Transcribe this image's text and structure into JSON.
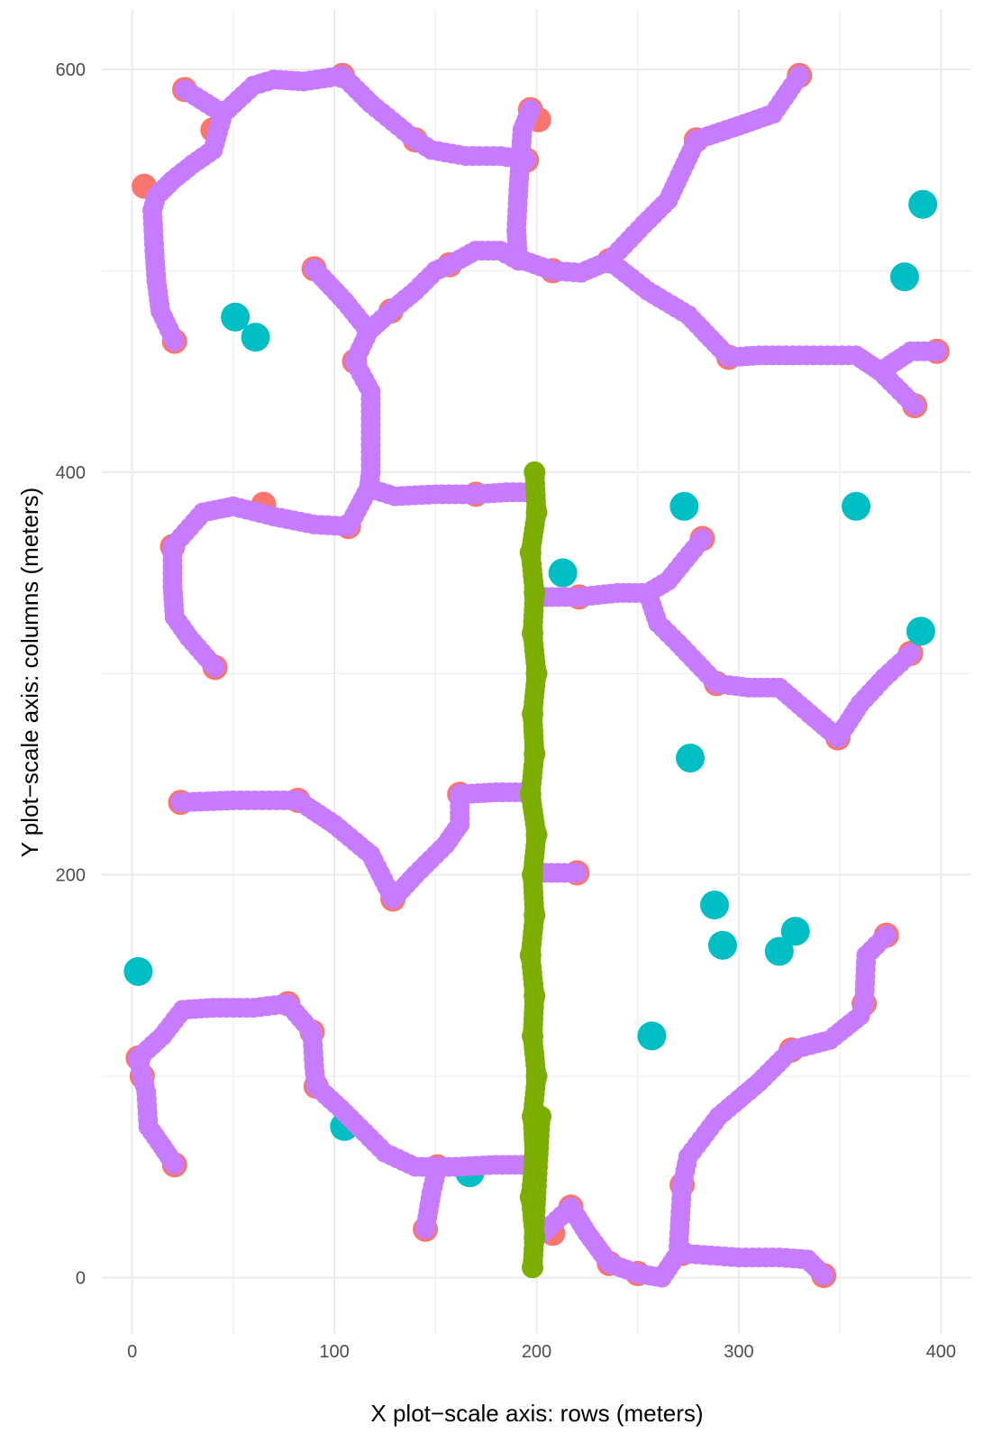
{
  "chart_data": {
    "type": "scatter",
    "xlabel": "X plot−scale axis: rows (meters)",
    "ylabel": "Y plot−scale axis: columns (meters)",
    "xlim": [
      -15,
      415
    ],
    "ylim": [
      -28,
      630
    ],
    "x_ticks": [
      0,
      100,
      200,
      300,
      400
    ],
    "y_ticks": [
      0,
      200,
      400,
      600
    ],
    "grid": true,
    "legend": "none",
    "colors": {
      "endpoints": "#F8766D",
      "isolated": "#00BFC4",
      "stem": "#7CAE00",
      "branches": "#C77CFF",
      "grid": "#ebebeb"
    },
    "series": [
      {
        "color": "#F8766D",
        "points": [
          [
            26,
            590
          ],
          [
            104,
            597
          ],
          [
            197,
            580
          ],
          [
            201,
            575
          ],
          [
            40,
            570
          ],
          [
            140,
            565
          ],
          [
            279,
            565
          ],
          [
            195,
            555
          ],
          [
            330,
            597
          ],
          [
            6,
            542
          ],
          [
            157,
            503
          ],
          [
            236,
            505
          ],
          [
            90,
            501
          ],
          [
            208,
            500
          ],
          [
            128,
            480
          ],
          [
            21,
            465
          ],
          [
            110,
            455
          ],
          [
            295,
            457
          ],
          [
            398,
            460
          ],
          [
            387,
            433
          ],
          [
            65,
            384
          ],
          [
            170,
            389
          ],
          [
            107,
            373
          ],
          [
            20,
            363
          ],
          [
            282,
            367
          ],
          [
            221,
            338
          ],
          [
            41,
            303
          ],
          [
            289,
            295
          ],
          [
            385,
            310
          ],
          [
            349,
            268
          ],
          [
            24,
            236
          ],
          [
            82,
            237
          ],
          [
            162,
            240
          ],
          [
            129,
            188
          ],
          [
            220,
            201
          ],
          [
            77,
            136
          ],
          [
            89,
            122
          ],
          [
            3,
            109
          ],
          [
            5,
            100
          ],
          [
            91,
            95
          ],
          [
            21,
            56
          ],
          [
            151,
            55
          ],
          [
            145,
            24
          ],
          [
            217,
            35
          ],
          [
            208,
            22
          ],
          [
            236,
            7
          ],
          [
            250,
            2
          ],
          [
            272,
            46
          ],
          [
            272,
            12
          ],
          [
            326,
            113
          ],
          [
            342,
            1
          ],
          [
            362,
            136
          ],
          [
            373,
            170
          ]
        ]
      },
      {
        "color": "#00BFC4",
        "points": [
          [
            51,
            477
          ],
          [
            61,
            467
          ],
          [
            391,
            533
          ],
          [
            382,
            497
          ],
          [
            273,
            383
          ],
          [
            358,
            383
          ],
          [
            213,
            350
          ],
          [
            390,
            321
          ],
          [
            276,
            258
          ],
          [
            288,
            185
          ],
          [
            292,
            165
          ],
          [
            320,
            162
          ],
          [
            328,
            172
          ],
          [
            3,
            152
          ],
          [
            257,
            120
          ],
          [
            105,
            75
          ],
          [
            167,
            52
          ]
        ]
      },
      {
        "color": "#7CAE00",
        "points": [
          [
            199,
            400
          ],
          [
            200,
            380
          ],
          [
            197,
            360
          ],
          [
            199,
            340
          ],
          [
            198,
            320
          ],
          [
            200,
            300
          ],
          [
            198,
            280
          ],
          [
            199,
            260
          ],
          [
            197,
            240
          ],
          [
            200,
            220
          ],
          [
            198,
            200
          ],
          [
            199,
            180
          ],
          [
            197,
            160
          ],
          [
            199,
            140
          ],
          [
            198,
            120
          ],
          [
            200,
            100
          ],
          [
            198,
            80
          ],
          [
            199,
            60
          ],
          [
            197,
            40
          ],
          [
            199,
            20
          ],
          [
            198,
            5
          ],
          [
            202,
            80
          ]
        ]
      }
    ],
    "paths": [
      {
        "color": "#C77CFF",
        "points": [
          [
            21,
            465
          ],
          [
            14,
            480
          ],
          [
            12,
            495
          ],
          [
            11,
            510
          ],
          [
            10,
            530
          ],
          [
            12,
            537
          ],
          [
            20,
            545
          ],
          [
            30,
            553
          ],
          [
            40,
            560
          ],
          [
            45,
            578
          ],
          [
            60,
            592
          ],
          [
            70,
            595
          ],
          [
            85,
            594
          ],
          [
            104,
            597
          ],
          [
            118,
            583
          ],
          [
            140,
            565
          ],
          [
            148,
            560
          ],
          [
            165,
            557
          ],
          [
            182,
            557
          ],
          [
            195,
            555
          ]
        ]
      },
      {
        "color": "#C77CFF",
        "points": [
          [
            26,
            590
          ],
          [
            45,
            578
          ]
        ]
      },
      {
        "color": "#C77CFF",
        "points": [
          [
            197,
            580
          ],
          [
            193,
            570
          ],
          [
            192,
            555
          ],
          [
            191,
            540
          ],
          [
            190,
            520
          ],
          [
            191,
            505
          ],
          [
            182,
            510
          ],
          [
            170,
            510
          ],
          [
            157,
            503
          ],
          [
            150,
            500
          ],
          [
            140,
            490
          ],
          [
            128,
            480
          ],
          [
            117,
            470
          ],
          [
            110,
            455
          ]
        ]
      },
      {
        "color": "#C77CFF",
        "points": [
          [
            90,
            501
          ],
          [
            105,
            485
          ],
          [
            117,
            470
          ]
        ]
      },
      {
        "color": "#C77CFF",
        "points": [
          [
            110,
            455
          ],
          [
            118,
            440
          ],
          [
            118,
            420
          ],
          [
            118,
            400
          ],
          [
            117,
            392
          ],
          [
            130,
            388
          ],
          [
            150,
            389
          ],
          [
            170,
            389
          ],
          [
            185,
            390
          ],
          [
            195,
            390
          ],
          [
            198,
            390
          ]
        ]
      },
      {
        "color": "#C77CFF",
        "points": [
          [
            194,
            505
          ],
          [
            208,
            500
          ],
          [
            222,
            499
          ],
          [
            236,
            505
          ],
          [
            253,
            523
          ],
          [
            265,
            535
          ],
          [
            279,
            565
          ],
          [
            300,
            572
          ],
          [
            317,
            578
          ],
          [
            330,
            597
          ]
        ]
      },
      {
        "color": "#C77CFF",
        "points": [
          [
            236,
            505
          ],
          [
            255,
            490
          ],
          [
            275,
            478
          ],
          [
            295,
            457
          ],
          [
            310,
            458
          ],
          [
            330,
            458
          ],
          [
            358,
            458
          ],
          [
            370,
            450
          ],
          [
            387,
            433
          ]
        ]
      },
      {
        "color": "#C77CFF",
        "points": [
          [
            370,
            450
          ],
          [
            385,
            460
          ],
          [
            398,
            460
          ]
        ]
      },
      {
        "color": "#C77CFF",
        "points": [
          [
            117,
            392
          ],
          [
            107,
            373
          ],
          [
            90,
            374
          ],
          [
            70,
            378
          ],
          [
            50,
            383
          ],
          [
            35,
            380
          ],
          [
            20,
            363
          ],
          [
            20,
            343
          ],
          [
            21,
            328
          ],
          [
            28,
            318
          ],
          [
            41,
            303
          ]
        ]
      },
      {
        "color": "#C77CFF",
        "points": [
          [
            201,
            338
          ],
          [
            221,
            338
          ],
          [
            240,
            340
          ],
          [
            255,
            340
          ],
          [
            265,
            346
          ],
          [
            282,
            367
          ]
        ]
      },
      {
        "color": "#C77CFF",
        "points": [
          [
            255,
            340
          ],
          [
            260,
            325
          ],
          [
            270,
            315
          ],
          [
            289,
            295
          ],
          [
            305,
            293
          ],
          [
            320,
            293
          ],
          [
            335,
            280
          ],
          [
            349,
            268
          ],
          [
            360,
            285
          ],
          [
            372,
            298
          ],
          [
            385,
            310
          ]
        ]
      },
      {
        "color": "#C77CFF",
        "points": [
          [
            24,
            236
          ],
          [
            50,
            237
          ],
          [
            82,
            237
          ],
          [
            100,
            225
          ],
          [
            118,
            210
          ],
          [
            129,
            188
          ],
          [
            140,
            200
          ],
          [
            155,
            215
          ],
          [
            162,
            225
          ],
          [
            162,
            240
          ],
          [
            180,
            241
          ],
          [
            196,
            241
          ]
        ]
      },
      {
        "color": "#C77CFF",
        "points": [
          [
            201,
            201
          ],
          [
            220,
            201
          ]
        ]
      },
      {
        "color": "#C77CFF",
        "points": [
          [
            3,
            109
          ],
          [
            15,
            120
          ],
          [
            25,
            133
          ],
          [
            40,
            134
          ],
          [
            60,
            134
          ],
          [
            77,
            136
          ],
          [
            89,
            122
          ],
          [
            90,
            105
          ],
          [
            91,
            95
          ],
          [
            103,
            84
          ],
          [
            115,
            72
          ],
          [
            125,
            62
          ],
          [
            140,
            55
          ],
          [
            160,
            55
          ],
          [
            180,
            56
          ],
          [
            196,
            56
          ]
        ]
      },
      {
        "color": "#C77CFF",
        "points": [
          [
            3,
            109
          ],
          [
            7,
            92
          ],
          [
            8,
            75
          ],
          [
            15,
            65
          ],
          [
            21,
            56
          ]
        ]
      },
      {
        "color": "#C77CFF",
        "points": [
          [
            151,
            55
          ],
          [
            148,
            42
          ],
          [
            145,
            24
          ]
        ]
      },
      {
        "color": "#C77CFF",
        "points": [
          [
            203,
            22
          ],
          [
            217,
            35
          ],
          [
            225,
            22
          ],
          [
            236,
            7
          ],
          [
            250,
            2
          ],
          [
            262,
            0
          ],
          [
            270,
            12
          ],
          [
            272,
            46
          ],
          [
            275,
            60
          ],
          [
            290,
            80
          ],
          [
            310,
            97
          ],
          [
            326,
            113
          ],
          [
            345,
            118
          ],
          [
            360,
            130
          ],
          [
            362,
            136
          ],
          [
            363,
            160
          ],
          [
            373,
            170
          ]
        ]
      },
      {
        "color": "#C77CFF",
        "points": [
          [
            272,
            12
          ],
          [
            300,
            10
          ],
          [
            320,
            10
          ],
          [
            334,
            9
          ],
          [
            342,
            1
          ]
        ]
      }
    ]
  }
}
